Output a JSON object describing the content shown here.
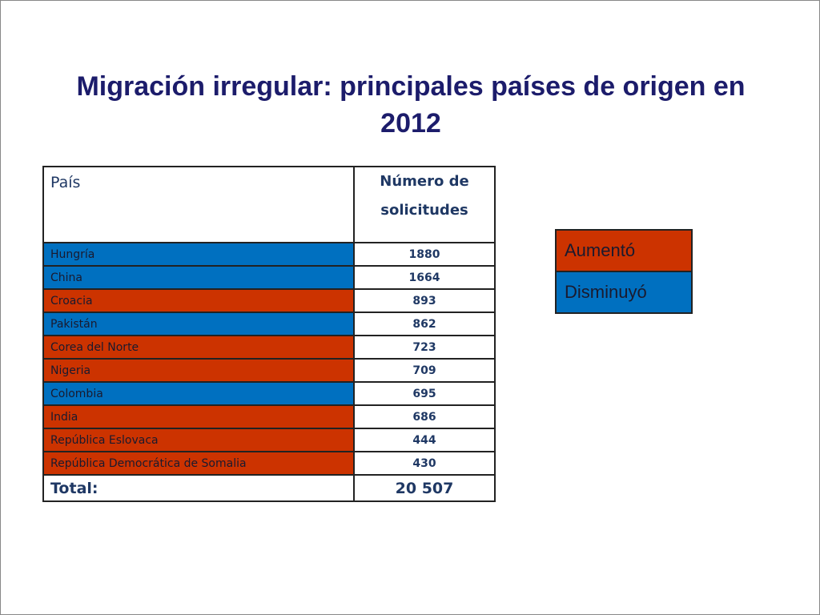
{
  "title": "Migración irregular: principales países de origen en 2012",
  "table": {
    "header": [
      "País",
      "Número de solicitudes"
    ],
    "rows": [
      {
        "country": "Hungría",
        "value": 1880,
        "color": "#0070c0"
      },
      {
        "country": "China",
        "value": 1664,
        "color": "#0070c0"
      },
      {
        "country": "Croacia",
        "value": 893,
        "color": "#cc3300"
      },
      {
        "country": "Pakistán",
        "value": 862,
        "color": "#0070c0"
      },
      {
        "country": "Corea del Norte",
        "value": 723,
        "color": "#cc3300"
      },
      {
        "country": "Nigeria",
        "value": 709,
        "color": "#cc3300"
      },
      {
        "country": "Colombia",
        "value": 695,
        "color": "#0070c0"
      },
      {
        "country": "India",
        "value": 686,
        "color": "#cc3300"
      },
      {
        "country": "República Eslovaca",
        "value": 444,
        "color": "#cc3300"
      },
      {
        "country": "República Democrática de Somalia",
        "value": 430,
        "color": "#cc3300"
      }
    ],
    "total": [
      "Total:",
      "20 507"
    ]
  },
  "legend": [
    {
      "label": "Aumentó",
      "color": "#cc3300"
    },
    {
      "label": "Disminuyó",
      "color": "#0070c0"
    }
  ]
}
